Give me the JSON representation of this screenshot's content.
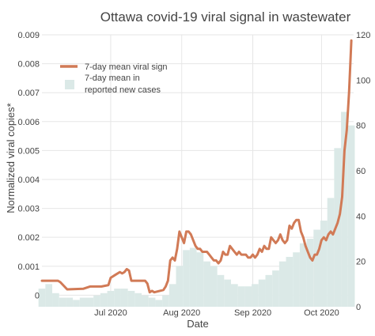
{
  "chart_data": {
    "type": "line",
    "title": "Ottawa covid-19 viral signal in wastewater",
    "xlabel": "Date",
    "ylabel": "Normalized viral copies*",
    "y2label": "",
    "grid": true,
    "legend_position": "top-left",
    "x_tick_labels": [
      "Jul 2020",
      "Aug 2020",
      "Sep 2020",
      "Oct 2020"
    ],
    "x_ticks": [
      "2020-07-01",
      "2020-08-01",
      "2020-09-01",
      "2020-10-01"
    ],
    "xlim": [
      "2020-06-01",
      "2020-10-15"
    ],
    "ylim": [
      -0.0004,
      0.009
    ],
    "y_tick_labels": [
      "0",
      "0.001",
      "0.002",
      "0.003",
      "0.004",
      "0.005",
      "0.006",
      "0.007",
      "0.008",
      "0.009"
    ],
    "y2lim": [
      0,
      120
    ],
    "y2_tick_labels": [
      "0",
      "20",
      "40",
      "60",
      "80",
      "100",
      "120"
    ],
    "colors": {
      "line": "#d17a56",
      "bar": "#dbe9e7",
      "grid": "#e6e6e6"
    },
    "series": [
      {
        "name": "7-day mean viral sign",
        "axis": "left",
        "kind": "line",
        "dates": [
          "2020-06-01",
          "2020-06-08",
          "2020-06-09",
          "2020-06-12",
          "2020-06-19",
          "2020-06-22",
          "2020-06-26",
          "2020-06-27",
          "2020-06-30",
          "2020-07-01",
          "2020-07-03",
          "2020-07-05",
          "2020-07-06",
          "2020-07-07",
          "2020-07-08",
          "2020-07-09",
          "2020-07-10",
          "2020-07-16",
          "2020-07-17",
          "2020-07-18",
          "2020-07-19",
          "2020-07-20",
          "2020-07-24",
          "2020-07-25",
          "2020-07-26",
          "2020-07-27",
          "2020-07-28",
          "2020-07-29",
          "2020-07-30",
          "2020-07-31",
          "2020-08-01",
          "2020-08-02",
          "2020-08-03",
          "2020-08-04",
          "2020-08-05",
          "2020-08-06",
          "2020-08-07",
          "2020-08-08",
          "2020-08-09",
          "2020-08-10",
          "2020-08-11",
          "2020-08-12",
          "2020-08-13",
          "2020-08-14",
          "2020-08-15",
          "2020-08-16",
          "2020-08-17",
          "2020-08-18",
          "2020-08-19",
          "2020-08-20",
          "2020-08-21",
          "2020-08-22",
          "2020-08-23",
          "2020-08-24",
          "2020-08-25",
          "2020-08-26",
          "2020-08-27",
          "2020-08-28",
          "2020-08-29",
          "2020-08-30",
          "2020-08-31",
          "2020-09-01",
          "2020-09-02",
          "2020-09-03",
          "2020-09-04",
          "2020-09-05",
          "2020-09-06",
          "2020-09-07",
          "2020-09-08",
          "2020-09-09",
          "2020-09-10",
          "2020-09-11",
          "2020-09-12",
          "2020-09-13",
          "2020-09-14",
          "2020-09-15",
          "2020-09-16",
          "2020-09-17",
          "2020-09-18",
          "2020-09-19",
          "2020-09-20",
          "2020-09-21",
          "2020-09-22",
          "2020-09-23",
          "2020-09-24",
          "2020-09-25",
          "2020-09-26",
          "2020-09-27",
          "2020-09-28",
          "2020-09-29",
          "2020-09-30",
          "2020-10-01",
          "2020-10-02",
          "2020-10-03",
          "2020-10-04",
          "2020-10-05",
          "2020-10-06",
          "2020-10-07",
          "2020-10-08",
          "2020-10-09",
          "2020-10-10",
          "2020-10-11",
          "2020-10-12",
          "2020-10-13",
          "2020-10-14"
        ],
        "values": [
          0.0005,
          0.0005,
          0.00045,
          0.0002,
          0.00022,
          0.0003,
          0.0003,
          0.0003,
          0.00035,
          0.0006,
          0.0007,
          0.0008,
          0.00075,
          0.0008,
          0.0009,
          0.00085,
          0.0005,
          0.0005,
          0.0004,
          0.0001,
          0.00015,
          0.0001,
          0.00018,
          0.0003,
          0.0005,
          0.0012,
          0.0013,
          0.0012,
          0.0016,
          0.0022,
          0.002,
          0.0018,
          0.0022,
          0.0022,
          0.0021,
          0.0019,
          0.0017,
          0.0016,
          0.0016,
          0.0015,
          0.0015,
          0.0015,
          0.0014,
          0.0013,
          0.0012,
          0.0012,
          0.0011,
          0.0012,
          0.0015,
          0.0014,
          0.0014,
          0.0017,
          0.0016,
          0.0015,
          0.0014,
          0.0015,
          0.0014,
          0.0014,
          0.0014,
          0.0013,
          0.0013,
          0.0014,
          0.0013,
          0.0014,
          0.0016,
          0.0015,
          0.0017,
          0.0016,
          0.0016,
          0.002,
          0.0019,
          0.0018,
          0.0019,
          0.0021,
          0.0019,
          0.0018,
          0.0019,
          0.0024,
          0.0023,
          0.0025,
          0.0026,
          0.0026,
          0.0022,
          0.002,
          0.0017,
          0.0015,
          0.0013,
          0.0012,
          0.0014,
          0.0014,
          0.0016,
          0.0019,
          0.002,
          0.0019,
          0.0021,
          0.0022,
          0.0021,
          0.0023,
          0.0025,
          0.0028,
          0.0034,
          0.005,
          0.0057,
          0.007,
          0.0088
        ]
      },
      {
        "name": "7-day mean in reported new cases",
        "axis": "right",
        "kind": "bar",
        "dates": [
          "2020-06-01",
          "2020-06-04",
          "2020-06-07",
          "2020-06-10",
          "2020-06-13",
          "2020-06-16",
          "2020-06-19",
          "2020-06-22",
          "2020-06-25",
          "2020-06-28",
          "2020-07-01",
          "2020-07-04",
          "2020-07-07",
          "2020-07-10",
          "2020-07-13",
          "2020-07-16",
          "2020-07-19",
          "2020-07-22",
          "2020-07-25",
          "2020-07-28",
          "2020-07-31",
          "2020-08-03",
          "2020-08-06",
          "2020-08-09",
          "2020-08-12",
          "2020-08-15",
          "2020-08-18",
          "2020-08-21",
          "2020-08-24",
          "2020-08-27",
          "2020-08-30",
          "2020-09-02",
          "2020-09-05",
          "2020-09-08",
          "2020-09-11",
          "2020-09-14",
          "2020-09-17",
          "2020-09-20",
          "2020-09-23",
          "2020-09-26",
          "2020-09-29",
          "2020-10-02",
          "2020-10-05",
          "2020-10-08",
          "2020-10-11",
          "2020-10-14"
        ],
        "values": [
          8,
          10,
          6,
          4,
          4,
          3,
          4,
          4,
          5,
          6,
          7,
          8,
          8,
          7,
          6,
          5,
          4,
          3,
          5,
          10,
          18,
          25,
          26,
          24,
          20,
          18,
          14,
          12,
          10,
          9,
          9,
          10,
          12,
          14,
          16,
          20,
          22,
          24,
          28,
          30,
          34,
          38,
          48,
          70,
          86,
          80
        ]
      }
    ]
  }
}
